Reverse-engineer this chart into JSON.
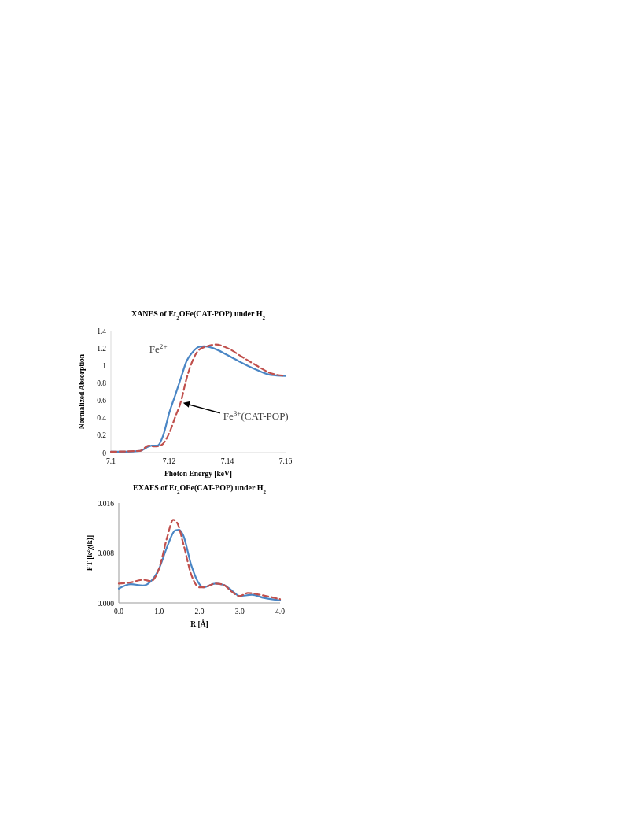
{
  "chart_data": [
    {
      "type": "line",
      "title": "XANES of Et$_{2}$OFe(CAT-POP) under H$_{2}$",
      "xlabel": "Photon Energy [keV]",
      "ylabel": "Normalized Absorption",
      "xlim": [
        7.1,
        7.16
      ],
      "xticks": [
        7.1,
        7.12,
        7.14,
        7.16
      ],
      "ylim": [
        0,
        1.4
      ],
      "yticks": [
        0,
        0.2,
        0.4,
        0.6,
        0.8,
        1,
        1.2,
        1.4
      ],
      "grid": false,
      "annotations": [
        "Fe$^{2+}$",
        {
          "text": "Fe$^{3+}$(CAT-POP)",
          "x": 7.124,
          "y": 0.58
        }
      ],
      "series": [
        {
          "color": "#4a86c5",
          "line_style": "solid",
          "x": [
            7.1,
            7.105,
            7.11,
            7.113,
            7.114,
            7.116,
            7.118,
            7.12,
            7.122,
            7.124,
            7.126,
            7.128,
            7.13,
            7.132,
            7.135,
            7.14,
            7.145,
            7.15,
            7.155,
            7.16
          ],
          "values": [
            0.01,
            0.01,
            0.02,
            0.07,
            0.08,
            0.08,
            0.2,
            0.45,
            0.65,
            0.85,
            1.05,
            1.15,
            1.21,
            1.22,
            1.2,
            1.12,
            1.03,
            0.95,
            0.89,
            0.88
          ]
        },
        {
          "color": "#c0504d",
          "line_style": "dashed",
          "x": [
            7.1,
            7.11,
            7.113,
            7.115,
            7.117,
            7.12,
            7.122,
            7.124,
            7.126,
            7.128,
            7.13,
            7.133,
            7.136,
            7.14,
            7.145,
            7.15,
            7.155,
            7.16
          ],
          "values": [
            0.01,
            0.02,
            0.08,
            0.07,
            0.08,
            0.22,
            0.4,
            0.58,
            0.85,
            1.05,
            1.17,
            1.22,
            1.24,
            1.2,
            1.1,
            1.0,
            0.91,
            0.88
          ]
        }
      ]
    },
    {
      "type": "line",
      "title": "EXAFS of Et$_{2}$OFe(CAT-POP)  under H$_{2}$",
      "xlabel": "R [Å]",
      "ylabel": "FT [k$^{2}$χ(k)]",
      "xlim": [
        0,
        4
      ],
      "xticks": [
        {
          "value": 0,
          "label": "0.0"
        },
        {
          "value": 1,
          "label": "1.0"
        },
        {
          "value": 2,
          "label": "2.0"
        },
        {
          "value": 3,
          "label": "3.0"
        },
        {
          "value": 4,
          "label": "4.0"
        }
      ],
      "ylim": [
        0,
        0.016
      ],
      "yticks": [
        {
          "value": 0,
          "label": "0.000"
        },
        {
          "value": 0.008,
          "label": "0.008"
        },
        {
          "value": 0.016,
          "label": "0.016"
        }
      ],
      "grid": false,
      "series": [
        {
          "color": "#4a86c5",
          "line_style": "solid",
          "x": [
            0,
            0.3,
            0.6,
            0.8,
            1.0,
            1.2,
            1.4,
            1.5,
            1.6,
            1.8,
            2.0,
            2.1,
            2.4,
            2.6,
            2.8,
            3.0,
            3.3,
            3.6,
            4.0
          ],
          "values": [
            0.0023,
            0.003,
            0.0028,
            0.0035,
            0.0055,
            0.009,
            0.0116,
            0.0117,
            0.0108,
            0.006,
            0.003,
            0.0025,
            0.0031,
            0.0029,
            0.002,
            0.0011,
            0.0013,
            0.0008,
            0.0004
          ]
        },
        {
          "color": "#c0504d",
          "line_style": "dashed",
          "x": [
            0,
            0.3,
            0.6,
            0.8,
            1.0,
            1.2,
            1.35,
            1.45,
            1.6,
            1.8,
            2.0,
            2.1,
            2.4,
            2.6,
            2.8,
            3.0,
            3.2,
            3.5,
            3.8,
            4.0
          ],
          "values": [
            0.0031,
            0.0033,
            0.0037,
            0.0035,
            0.0055,
            0.0105,
            0.0133,
            0.0128,
            0.0095,
            0.0045,
            0.0025,
            0.0025,
            0.0031,
            0.0029,
            0.0018,
            0.0011,
            0.0016,
            0.0013,
            0.0009,
            0.0006
          ]
        }
      ]
    }
  ]
}
